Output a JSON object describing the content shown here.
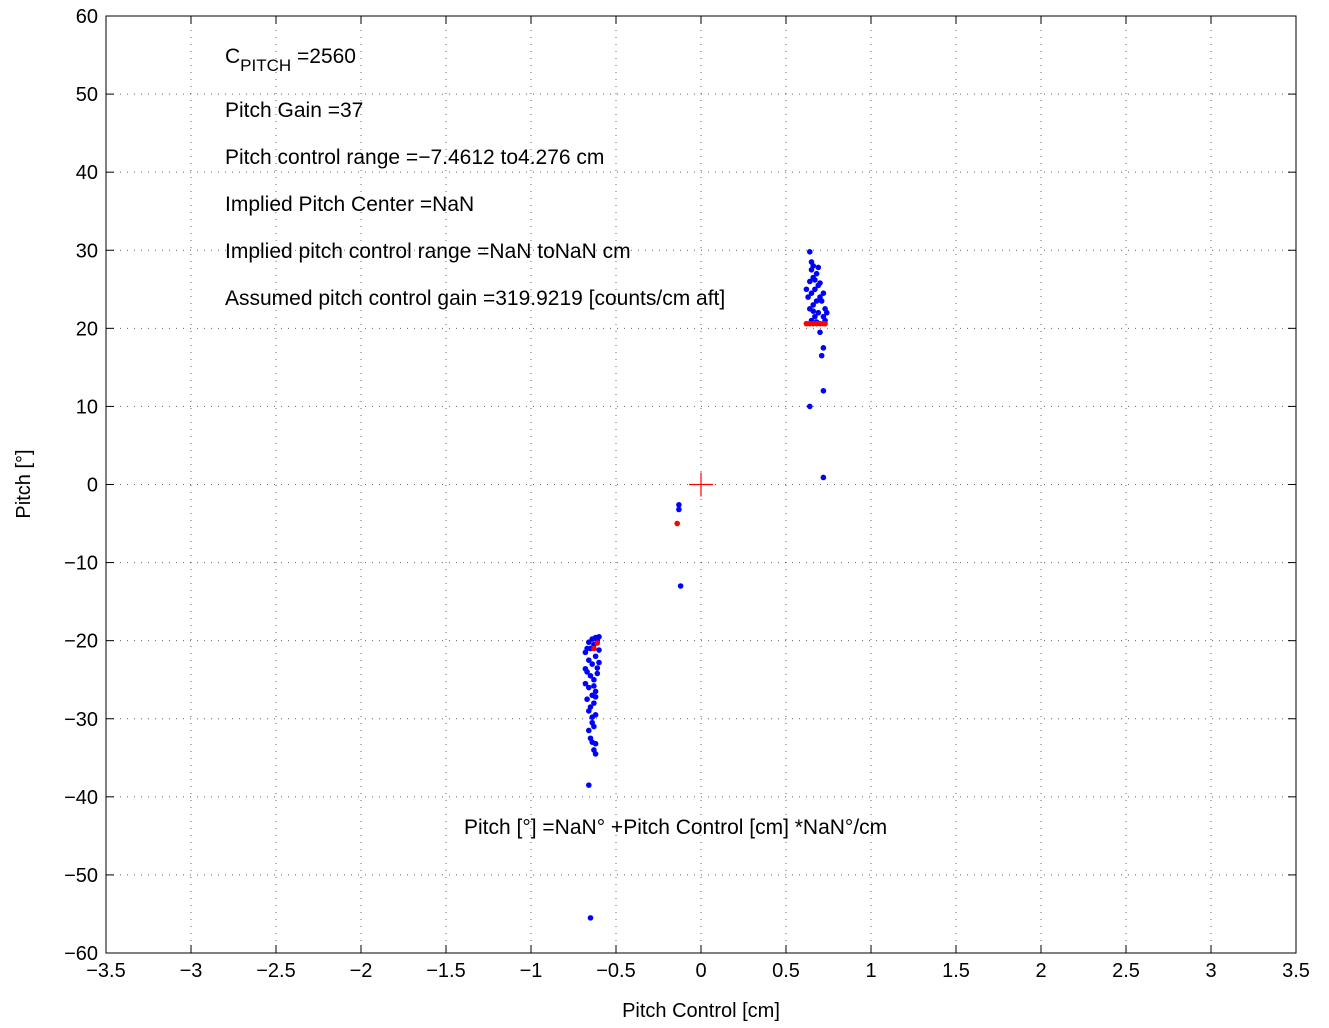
{
  "chart_data": {
    "type": "scatter",
    "xlabel": "Pitch Control [cm]",
    "ylabel": "Pitch [°]",
    "xlim": [
      -3.5,
      3.5
    ],
    "ylim": [
      -60,
      60
    ],
    "xticks": [
      -3.5,
      -3,
      -2.5,
      -2,
      -1.5,
      -1,
      -0.5,
      0,
      0.5,
      1,
      1.5,
      2,
      2.5,
      3,
      3.5
    ],
    "yticks": [
      -60,
      -50,
      -40,
      -30,
      -20,
      -10,
      0,
      10,
      20,
      30,
      40,
      50,
      60
    ],
    "xtick_labels": [
      "−3.5",
      "−3",
      "−2.5",
      "−2",
      "−1.5",
      "−1",
      "−0.5",
      "0",
      "0.5",
      "1",
      "1.5",
      "2",
      "2.5",
      "3",
      "3.5"
    ],
    "ytick_labels": [
      "−60",
      "−50",
      "−40",
      "−30",
      "−20",
      "−10",
      "0",
      "10",
      "20",
      "30",
      "40",
      "50",
      "60"
    ],
    "grid": true,
    "colors": {
      "blue": "#0000ff",
      "red": "#ff0000"
    },
    "annotations": {
      "c_pitch_main": "C",
      "c_pitch_sub": "PITCH",
      "c_pitch_value": " =2560",
      "pitch_gain": "Pitch Gain =37",
      "pitch_control_range": "Pitch control range =−7.4612 to4.276 cm",
      "implied_center": "Implied Pitch Center =NaN",
      "implied_range": "Implied pitch control range =NaN toNaN cm",
      "assumed_gain": "Assumed pitch control gain =319.9219 [counts/cm aft]",
      "equation": "Pitch [°] =NaN° +Pitch Control [cm] *NaN°/cm"
    },
    "center_marker": {
      "x": 0,
      "y": 0,
      "color": "#ff0000"
    },
    "series": [
      {
        "color": "#0000ff",
        "points": [
          [
            -0.65,
            -55.5
          ],
          [
            -0.66,
            -38.5
          ],
          [
            -0.62,
            -34.5
          ],
          [
            -0.63,
            -34
          ],
          [
            -0.64,
            -33
          ],
          [
            -0.65,
            -32.5
          ],
          [
            -0.66,
            -31.5
          ],
          [
            -0.64,
            -30.5
          ],
          [
            -0.62,
            -29.5
          ],
          [
            -0.66,
            -29
          ],
          [
            -0.65,
            -28.5
          ],
          [
            -0.63,
            -28
          ],
          [
            -0.67,
            -27.5
          ],
          [
            -0.64,
            -27
          ],
          [
            -0.62,
            -26.5
          ],
          [
            -0.66,
            -26
          ],
          [
            -0.68,
            -25.5
          ],
          [
            -0.63,
            -25
          ],
          [
            -0.65,
            -24.5
          ],
          [
            -0.67,
            -24
          ],
          [
            -0.61,
            -23.5
          ],
          [
            -0.64,
            -23
          ],
          [
            -0.66,
            -22.5
          ],
          [
            -0.62,
            -22
          ],
          [
            -0.68,
            -21.5
          ],
          [
            -0.65,
            -21
          ],
          [
            -0.63,
            -20.5
          ],
          [
            -0.61,
            -20
          ],
          [
            -0.64,
            -19.8
          ],
          [
            -0.62,
            -19.6
          ],
          [
            -0.6,
            -21.2
          ],
          [
            -0.6,
            -22.8
          ],
          [
            -0.61,
            -24.2
          ],
          [
            -0.63,
            -25.8
          ],
          [
            -0.62,
            -27.2
          ],
          [
            -0.64,
            -29.8
          ],
          [
            -0.63,
            -31
          ],
          [
            -0.62,
            -33.2
          ],
          [
            -0.68,
            -23.6
          ],
          [
            -0.67,
            -21
          ],
          [
            -0.66,
            -20.2
          ],
          [
            -0.6,
            -19.5
          ],
          [
            -0.13,
            -2.6
          ],
          [
            -0.13,
            -3.2
          ],
          [
            -0.12,
            -13
          ],
          [
            0.72,
            0.9
          ],
          [
            0.72,
            12
          ],
          [
            0.64,
            10
          ],
          [
            0.71,
            16.5
          ],
          [
            0.72,
            17.5
          ],
          [
            0.7,
            19.5
          ],
          [
            0.65,
            21
          ],
          [
            0.67,
            21.5
          ],
          [
            0.69,
            22
          ],
          [
            0.64,
            22.5
          ],
          [
            0.66,
            23
          ],
          [
            0.68,
            23.5
          ],
          [
            0.7,
            24
          ],
          [
            0.65,
            24.5
          ],
          [
            0.67,
            25
          ],
          [
            0.69,
            25.5
          ],
          [
            0.64,
            26
          ],
          [
            0.66,
            26.5
          ],
          [
            0.68,
            27
          ],
          [
            0.65,
            27.5
          ],
          [
            0.66,
            28
          ],
          [
            0.65,
            28.5
          ],
          [
            0.64,
            29.8
          ],
          [
            0.72,
            21.5
          ],
          [
            0.73,
            22.5
          ],
          [
            0.71,
            23.5
          ],
          [
            0.72,
            24.5
          ],
          [
            0.7,
            25.8
          ],
          [
            0.73,
            21
          ],
          [
            0.74,
            22
          ],
          [
            0.63,
            24
          ],
          [
            0.62,
            25
          ],
          [
            0.67,
            26.2
          ],
          [
            0.69,
            27.8
          ],
          [
            0.66,
            22.2
          ],
          [
            0.68,
            20.8
          ]
        ]
      },
      {
        "color": "#ff0000",
        "points": [
          [
            -0.63,
            -21
          ],
          [
            -0.61,
            -20.3
          ],
          [
            -0.14,
            -5
          ],
          [
            0.62,
            20.6
          ],
          [
            0.64,
            20.6
          ],
          [
            0.66,
            20.6
          ],
          [
            0.68,
            20.6
          ],
          [
            0.7,
            20.6
          ],
          [
            0.72,
            20.6
          ],
          [
            0.73,
            20.6
          ]
        ]
      }
    ]
  }
}
